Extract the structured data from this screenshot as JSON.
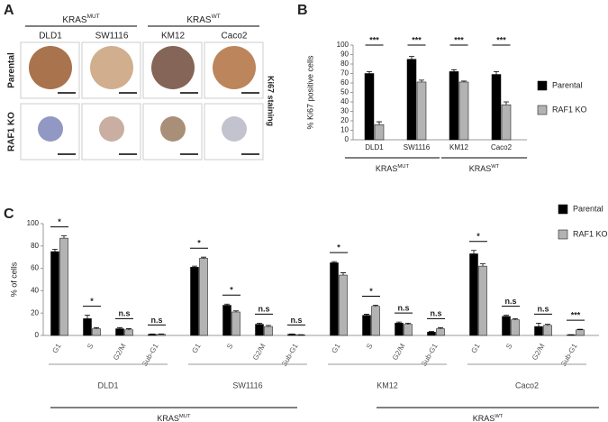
{
  "panel_a": {
    "label": "A",
    "groups": [
      {
        "base": "KRAS",
        "sup": "MUT"
      },
      {
        "base": "KRAS",
        "sup": "WT"
      }
    ],
    "columns": [
      "DLD1",
      "SW1116",
      "KM12",
      "Caco2"
    ],
    "rows": [
      "Parental",
      "RAF1 KO"
    ],
    "stain": "Ki67 staining"
  },
  "chart_data": [
    {
      "panel": "B",
      "type": "bar",
      "ylabel": "% Ki67 positive cells",
      "categories": [
        "DLD1",
        "SW1116",
        "KM12",
        "Caco2"
      ],
      "series": [
        {
          "name": "Parental",
          "color": "#000000",
          "values": [
            70,
            85,
            72,
            69
          ],
          "errors": [
            2,
            3,
            2,
            3
          ]
        },
        {
          "name": "RAF1 KO",
          "color": "#b3b3b3",
          "values": [
            16,
            61,
            61,
            37
          ],
          "errors": [
            3,
            2,
            1,
            3
          ]
        }
      ],
      "significance": [
        "***",
        "***",
        "***",
        "***"
      ],
      "groups": [
        {
          "base": "KRAS",
          "sup": "MUT"
        },
        {
          "base": "KRAS",
          "sup": "WT"
        }
      ],
      "ylim": [
        0,
        100
      ],
      "yticks": [
        0,
        10,
        20,
        30,
        40,
        50,
        60,
        70,
        80,
        90,
        100
      ],
      "legend": "right"
    },
    {
      "panel": "C",
      "type": "bar",
      "ylabel": "% of cells",
      "categories": [
        "G1",
        "S",
        "G2/M",
        "Sub-G1",
        "G1",
        "S",
        "G2/M",
        "Sub-G1",
        "G1",
        "S",
        "G2/M",
        "Sub-G1",
        "G1",
        "S",
        "G2/M",
        "Sub-G1"
      ],
      "cell_lines": [
        "DLD1",
        "SW1116",
        "KM12",
        "Caco2"
      ],
      "series": [
        {
          "name": "Parental",
          "color": "#000000",
          "values": [
            75,
            15,
            6,
            1,
            61,
            27,
            10,
            1,
            65,
            18,
            11,
            3,
            73,
            17,
            8,
            0.5
          ],
          "errors": [
            2,
            3,
            1,
            0.3,
            1,
            1,
            1,
            0.3,
            1,
            1,
            1,
            0.5,
            3,
            1,
            3,
            0.2
          ]
        },
        {
          "name": "RAF1 KO",
          "color": "#b3b3b3",
          "values": [
            87,
            6,
            5,
            1,
            69,
            21,
            8,
            0.5,
            54,
            26,
            10,
            6,
            62,
            14,
            9,
            5
          ],
          "errors": [
            2,
            1,
            1,
            0.3,
            1,
            1,
            1,
            0.2,
            2,
            1,
            1,
            1,
            2,
            1,
            1,
            0.5
          ]
        }
      ],
      "significance": [
        "*",
        "*",
        "n.s",
        "n.s",
        "*",
        "*",
        "n.s",
        "n.s",
        "*",
        "*",
        "n.s",
        "n.s",
        "*",
        "n.s",
        "n.s",
        "***"
      ],
      "groups": [
        {
          "base": "KRAS",
          "sup": "MUT"
        },
        {
          "base": "KRAS",
          "sup": "WT"
        }
      ],
      "ylim": [
        0,
        100
      ],
      "yticks": [
        0,
        20,
        40,
        60,
        80,
        100
      ],
      "legend": "top-right"
    }
  ]
}
